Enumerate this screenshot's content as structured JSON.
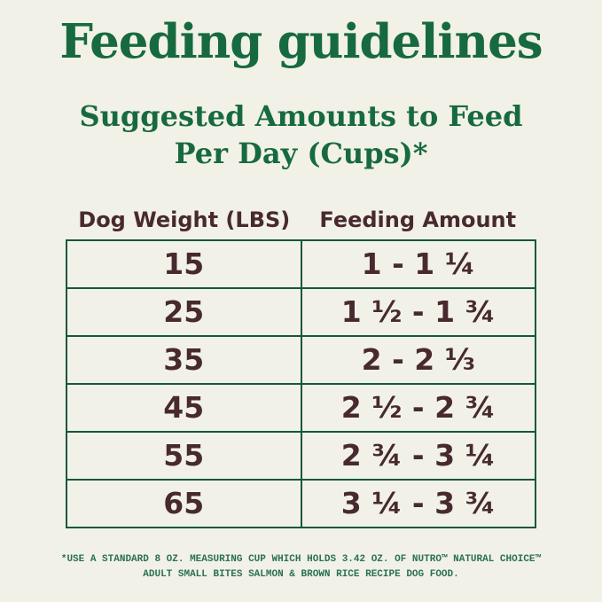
{
  "page": {
    "title": "Feeding guidelines",
    "subtitle_line1": "Suggested Amounts to Feed",
    "subtitle_line2": "Per Day (Cups)*",
    "colors": {
      "background": "#F2F1E8",
      "heading_green": "#176A40",
      "table_border_green": "#14573E",
      "table_text_brown": "#482A2E",
      "footnote_green": "#2A7150"
    }
  },
  "table": {
    "headers": [
      "Dog Weight (LBS)",
      "Feeding Amount"
    ],
    "rows": [
      {
        "weight": "15",
        "amount": "1 - 1 ¼"
      },
      {
        "weight": "25",
        "amount": "1 ½ - 1 ¾"
      },
      {
        "weight": "35",
        "amount": "2 - 2 ⅓"
      },
      {
        "weight": "45",
        "amount": "2 ½ - 2 ¾"
      },
      {
        "weight": "55",
        "amount": "2 ¾ - 3 ¼"
      },
      {
        "weight": "65",
        "amount": "3 ¼ - 3 ¾"
      }
    ]
  },
  "footnote": {
    "line1": "*USE A STANDARD 8 OZ. MEASURING CUP WHICH HOLDS 3.42 OZ. OF NUTRO™ NATURAL CHOICE™",
    "line2": "ADULT SMALL BITES SALMON & BROWN RICE RECIPE DOG FOOD."
  },
  "chart_data": {
    "type": "table",
    "title": "Feeding guidelines",
    "subtitle": "Suggested Amounts to Feed Per Day (Cups)*",
    "columns": [
      "Dog Weight (LBS)",
      "Feeding Amount"
    ],
    "rows": [
      [
        "15",
        "1 - 1 ¼"
      ],
      [
        "25",
        "1 ½ - 1 ¾"
      ],
      [
        "35",
        "2 - 2 ⅓"
      ],
      [
        "45",
        "2 ½ - 2 ¾"
      ],
      [
        "55",
        "2 ¾ - 3 ¼"
      ],
      [
        "65",
        "3 ¼ - 3 ¾"
      ]
    ],
    "footnote": "*USE A STANDARD 8 OZ. MEASURING CUP WHICH HOLDS 3.42 OZ. OF NUTRO™ NATURAL CHOICE™ ADULT SMALL BITES SALMON & BROWN RICE RECIPE DOG FOOD."
  }
}
